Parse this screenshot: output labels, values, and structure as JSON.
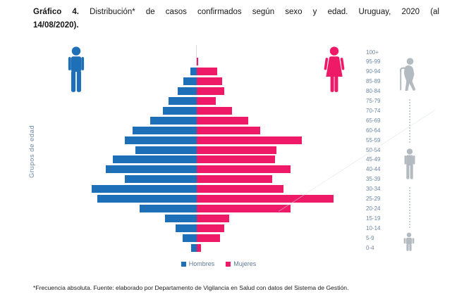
{
  "title": {
    "bold": "Gráfico 4.",
    "line1_rest": "Distribución* de casos confirmados según sexo y edad. Uruguay, 2020 (al",
    "line2": "14/08/2020)."
  },
  "ylabel": "Grupos de edad",
  "legend": {
    "hombres": "Hombres",
    "mujeres": "Mujeres"
  },
  "footnote": "*Frecuencia absoluta. Fuente: elaborado por Departamento de Vigilancia en Salud con datos del Sistema de Gestión.",
  "colors": {
    "hombres_blue": "#1d70b7",
    "mujeres_pink": "#ee1a68",
    "axis_text_gray_blue": "#6d87a3",
    "legend_text": "#5f7a96",
    "icon_gray": "#b3bac0",
    "axis_line": "#d4d9dd"
  },
  "icons": {
    "left": "man-icon",
    "right": "woman-icon",
    "age_scale": [
      "elderly-with-cane-icon",
      "adult-icon",
      "child-icon"
    ]
  },
  "chart_data": {
    "type": "bar",
    "variant": "population-pyramid",
    "title": "Distribución* de casos confirmados según sexo y edad. Uruguay, 2020 (al 14/08/2020)",
    "xlabel": "",
    "ylabel": "Grupos de edad",
    "legend_position": "bottom-center",
    "grid": false,
    "value_axis_labeled": false,
    "value_units": "frecuencia absoluta (relative bar lengths, px — no numeric axis shown)",
    "categories": [
      "100+",
      "95-99",
      "90-94",
      "85-89",
      "80-84",
      "75-79",
      "70-74",
      "65-69",
      "60-64",
      "55-59",
      "50-54",
      "45-49",
      "40-44",
      "35-39",
      "30-34",
      "25-29",
      "20-24",
      "15-19",
      "10-14",
      "5-9",
      "0-4"
    ],
    "series": [
      {
        "name": "Hombres",
        "side": "left",
        "color": "#1d70b7",
        "values": [
          0,
          0,
          9,
          19,
          27,
          40,
          48,
          66,
          91,
          102,
          87,
          119,
          129,
          102,
          149,
          141,
          81,
          45,
          30,
          20,
          8
        ]
      },
      {
        "name": "Mujeres",
        "side": "right",
        "color": "#ee1a68",
        "values": [
          0,
          2,
          29,
          36,
          39,
          27,
          50,
          73,
          90,
          149,
          113,
          111,
          133,
          107,
          123,
          194,
          133,
          46,
          39,
          33,
          6
        ]
      }
    ]
  }
}
